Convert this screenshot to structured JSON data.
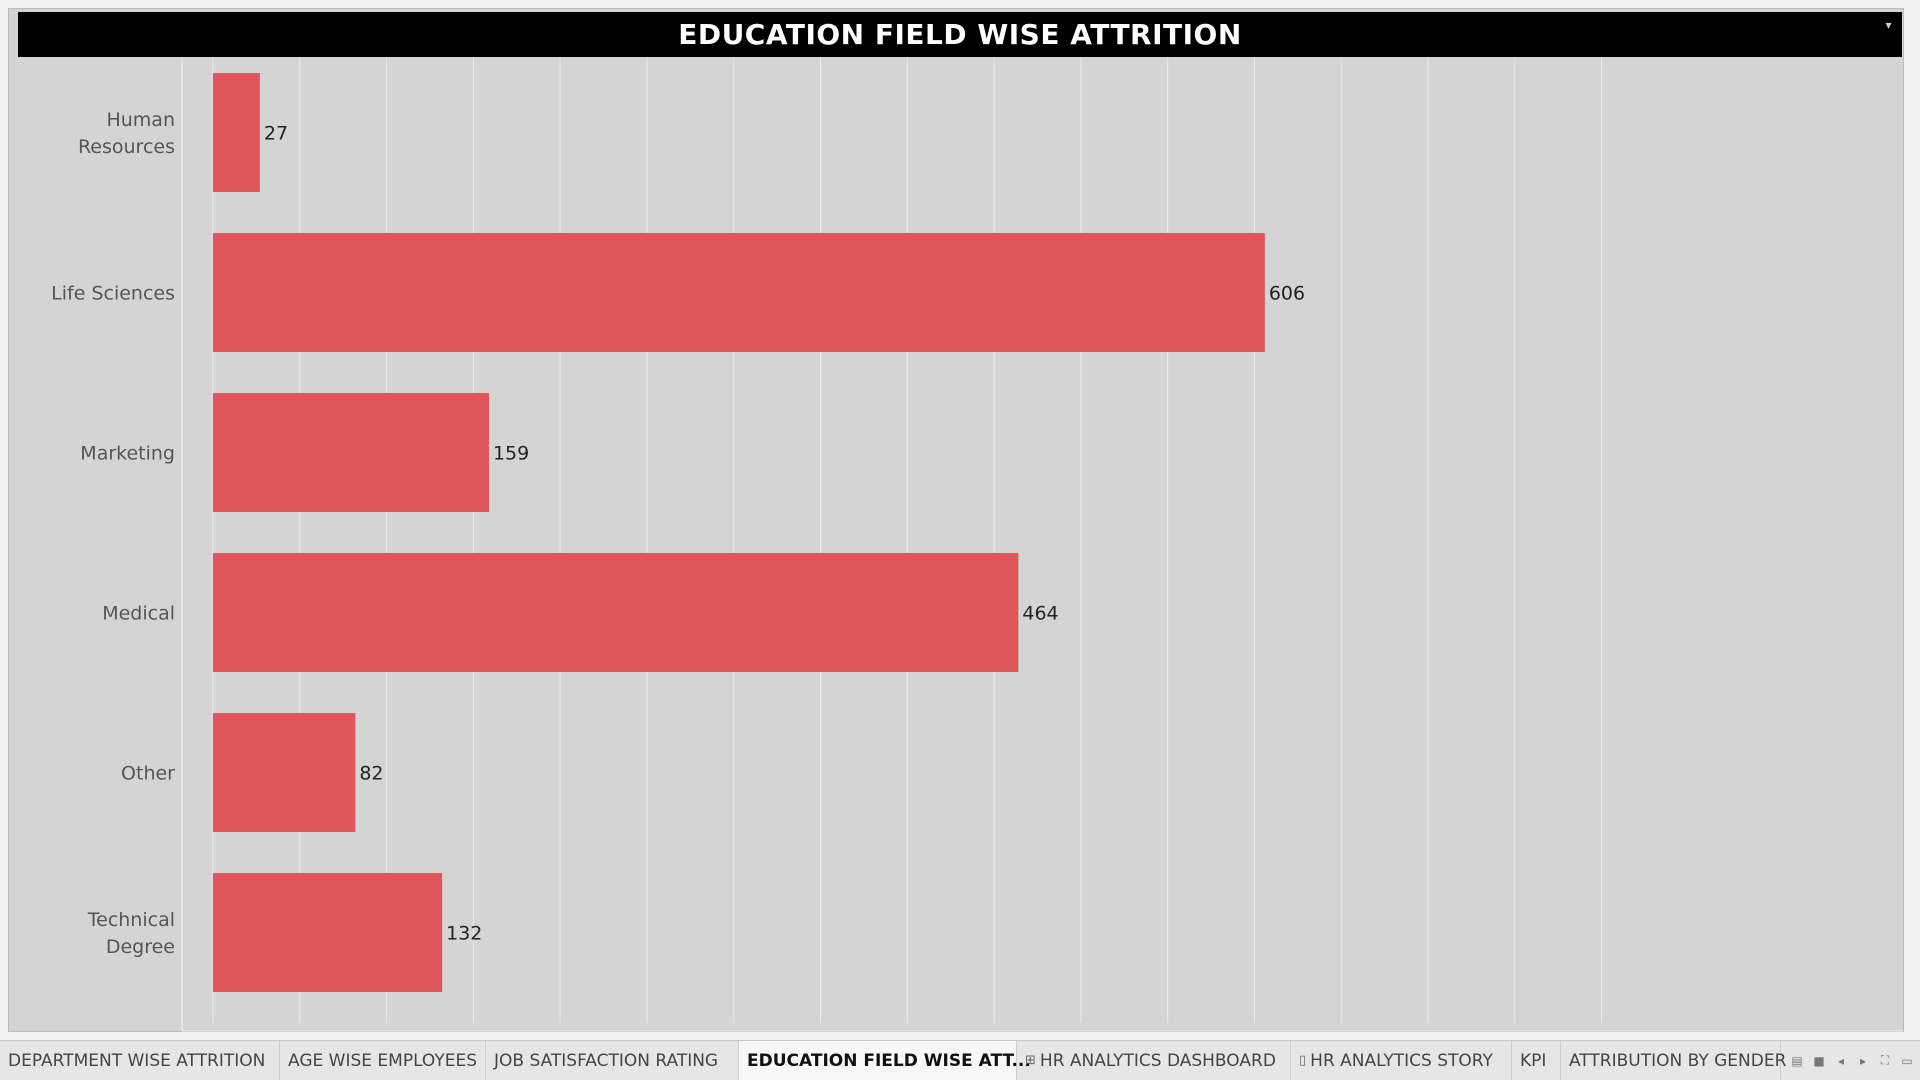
{
  "sheet": {
    "title": "EDUCATION FIELD WISE ATTRITION"
  },
  "colors": {
    "bar": "#e0565a",
    "title_background": "#000000",
    "background": "#d4d4d4"
  },
  "chart_data": {
    "type": "bar",
    "orientation": "horizontal",
    "title": "EDUCATION FIELD WISE ATTRITION",
    "categories": [
      "Human Resources",
      "Life Sciences",
      "Marketing",
      "Medical",
      "Other",
      "Technical Degree"
    ],
    "category_lines": [
      [
        "Human",
        "Resources"
      ],
      [
        "Life Sciences"
      ],
      [
        "Marketing"
      ],
      [
        "Medical"
      ],
      [
        "Other"
      ],
      [
        "Technical",
        "Degree"
      ]
    ],
    "values": [
      27,
      606,
      159,
      464,
      82,
      132
    ],
    "xlim": [
      0,
      800
    ],
    "grid": true,
    "xlabel": "",
    "ylabel": ""
  },
  "tabs": [
    {
      "label": "DEPARTMENT WISE ATTRITION",
      "icon": "",
      "active": false
    },
    {
      "label": "AGE WISE EMPLOYEES",
      "icon": "",
      "active": false
    },
    {
      "label": "JOB SATISFACTION RATING",
      "icon": "",
      "active": false
    },
    {
      "label": "EDUCATION FIELD WISE ATT...",
      "icon": "",
      "active": true
    },
    {
      "label": "HR ANALYTICS DASHBOARD",
      "icon": "dashboard-icon",
      "active": false
    },
    {
      "label": "HR ANALYTICS STORY",
      "icon": "story-icon",
      "active": false
    },
    {
      "label": "KPI",
      "icon": "",
      "active": false
    },
    {
      "label": "ATTRIBUTION BY GENDER",
      "icon": "",
      "active": false
    }
  ],
  "tab_controls": [
    "filmstrip-icon",
    "tabs-view-icon",
    "scroll-left-icon",
    "scroll-right-icon",
    "fullscreen-icon",
    "presentation-icon"
  ]
}
